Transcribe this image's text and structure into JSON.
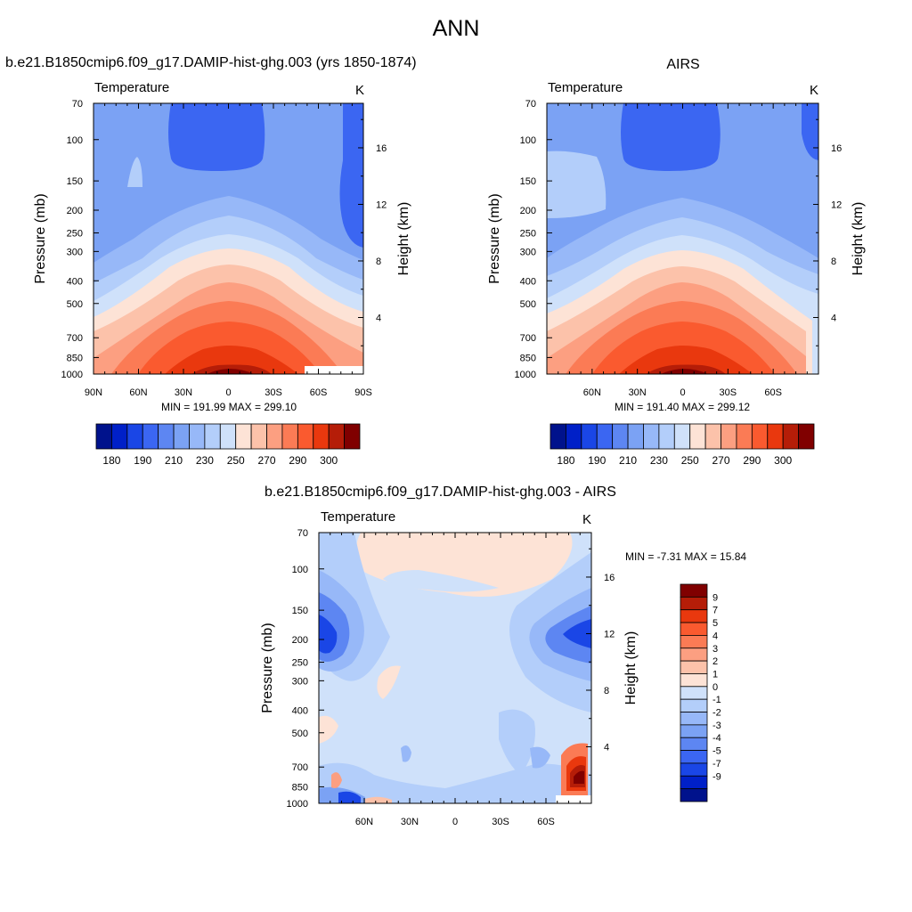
{
  "page": {
    "title": "ANN",
    "colors": {
      "warm": [
        "#fde3d6",
        "#fcc2aa",
        "#fc9f81",
        "#fb7b55",
        "#fa5a2f",
        "#e9380e",
        "#b51d08",
        "#800000"
      ],
      "cool": [
        "#cfe1fa",
        "#b3cefa",
        "#97b8f8",
        "#7ba2f4",
        "#5d86f2",
        "#3b66f2",
        "#1a46e6",
        "#0020c8",
        "#00128c"
      ]
    }
  },
  "chart_data": [
    {
      "type": "heatmap",
      "title": "b.e21.B1850cmip6.f09_g17.DAMIP-hist-ghg.003 (yrs 1850-1874)",
      "left_label": "Temperature",
      "right_label": "K",
      "xlabel": "",
      "ylabel": "Pressure (mb)",
      "ylabel_right": "Height (km)",
      "x_ticks": [
        "90N",
        "60N",
        "30N",
        "0",
        "30S",
        "60S",
        "90S"
      ],
      "y_ticks": [
        "70",
        "100",
        "150",
        "200",
        "250",
        "300",
        "400",
        "500",
        "700",
        "850",
        "1000"
      ],
      "height_ticks": [
        "16",
        "12",
        "8",
        "4"
      ],
      "stats": "MIN = 191.99  MAX = 299.10",
      "colorbar": {
        "orientation": "horizontal",
        "labels": [
          "180",
          "190",
          "210",
          "230",
          "250",
          "270",
          "290",
          "300"
        ]
      }
    },
    {
      "type": "heatmap",
      "title": "AIRS",
      "left_label": "Temperature",
      "right_label": "K",
      "xlabel": "",
      "ylabel": "Pressure (mb)",
      "ylabel_right": "Height (km)",
      "x_ticks": [
        "60N",
        "30N",
        "0",
        "30S",
        "60S"
      ],
      "y_ticks": [
        "70",
        "100",
        "150",
        "200",
        "250",
        "300",
        "400",
        "500",
        "700",
        "850",
        "1000"
      ],
      "height_ticks": [
        "16",
        "12",
        "8",
        "4"
      ],
      "stats": "MIN = 191.40  MAX = 299.12",
      "colorbar": {
        "orientation": "horizontal",
        "labels": [
          "180",
          "190",
          "210",
          "230",
          "250",
          "270",
          "290",
          "300"
        ]
      }
    },
    {
      "type": "heatmap",
      "title": "b.e21.B1850cmip6.f09_g17.DAMIP-hist-ghg.003 - AIRS",
      "left_label": "Temperature",
      "right_label": "K",
      "xlabel": "",
      "ylabel": "Pressure (mb)",
      "ylabel_right": "Height (km)",
      "x_ticks": [
        "60N",
        "30N",
        "0",
        "30S",
        "60S"
      ],
      "y_ticks": [
        "70",
        "100",
        "150",
        "200",
        "250",
        "300",
        "400",
        "500",
        "700",
        "850",
        "1000"
      ],
      "height_ticks": [
        "16",
        "12",
        "8",
        "4"
      ],
      "stats": "MIN =  -7.31  MAX =  15.84",
      "colorbar": {
        "orientation": "vertical",
        "labels": [
          "9",
          "7",
          "5",
          "4",
          "3",
          "2",
          "1",
          "0",
          "-1",
          "-2",
          "-3",
          "-4",
          "-5",
          "-7",
          "-9"
        ]
      }
    }
  ]
}
